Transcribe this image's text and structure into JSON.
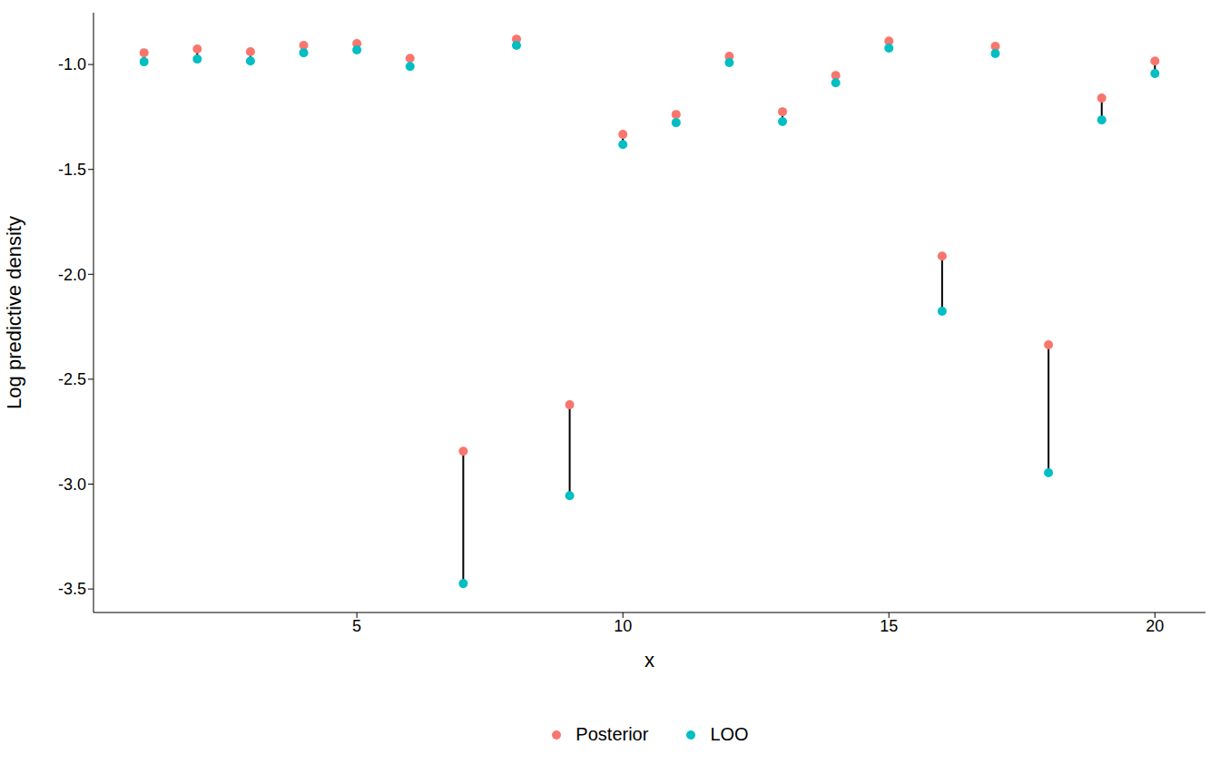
{
  "chart_data": {
    "type": "scatter",
    "x_label": "x",
    "y_label": "Log predictive density",
    "x": [
      1,
      2,
      3,
      4,
      5,
      6,
      7,
      8,
      9,
      10,
      11,
      12,
      13,
      14,
      15,
      16,
      17,
      18,
      19,
      20
    ],
    "series": [
      {
        "name": "Posterior",
        "color": "#F8766D",
        "marker": "circle",
        "values": [
          -0.944,
          -0.926,
          -0.939,
          -0.909,
          -0.9,
          -0.97,
          -2.843,
          -0.879,
          -2.622,
          -1.333,
          -1.238,
          -0.961,
          -1.225,
          -1.052,
          -0.888,
          -1.913,
          -0.913,
          -2.336,
          -1.16,
          -0.983
        ]
      },
      {
        "name": "LOO",
        "color": "#00BFC4",
        "marker": "circle",
        "values": [
          -0.987,
          -0.974,
          -0.983,
          -0.944,
          -0.93,
          -1.009,
          -3.474,
          -0.909,
          -3.055,
          -1.381,
          -1.277,
          -0.991,
          -1.272,
          -1.087,
          -0.922,
          -2.176,
          -0.948,
          -2.946,
          -1.264,
          -1.043
        ]
      }
    ],
    "xlim": [
      0.05,
      20.95
    ],
    "xticks": [
      5,
      10,
      15,
      20
    ],
    "ylim": [
      -3.612,
      -0.753
    ],
    "yticks": [
      {
        "value": -3.5,
        "label": "-3.5"
      },
      {
        "value": -3,
        "label": "-3.0"
      },
      {
        "value": -2.5,
        "label": "-2.5"
      },
      {
        "value": -2,
        "label": "-2.0"
      },
      {
        "value": -1.5,
        "label": "-1.5"
      },
      {
        "value": -1,
        "label": "-1.0"
      }
    ],
    "grid": false,
    "legend": "bottom"
  }
}
